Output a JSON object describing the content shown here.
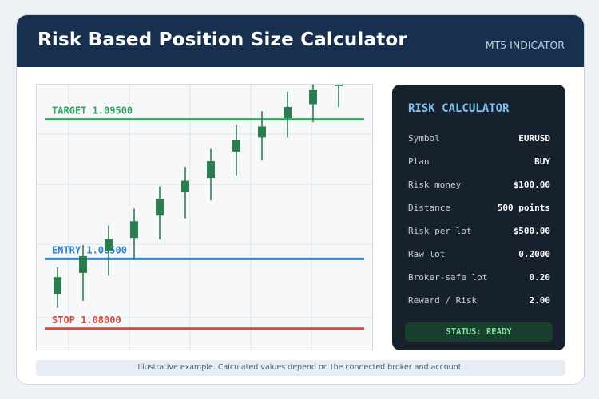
{
  "header": {
    "title": "Risk Based Position Size Calculator",
    "subtitle": "MT5 INDICATOR"
  },
  "chart_data": {
    "type": "candlestick",
    "ylim": [
      1.0785,
      1.0975
    ],
    "grid": true,
    "levels": [
      {
        "name": "target",
        "label": "TARGET 1.09500",
        "price": 1.095,
        "color": "#2fa561"
      },
      {
        "name": "entry",
        "label": "ENTRY 1.08500",
        "price": 1.085,
        "color": "#2b83d1"
      },
      {
        "name": "stop",
        "label": "STOP 1.08000",
        "price": 1.08,
        "color": "#d9493a"
      }
    ],
    "candle_color": "#2a7d4f",
    "candles": [
      {
        "open": 1.0825,
        "close": 1.0837,
        "high": 1.0844,
        "low": 1.0815
      },
      {
        "open": 1.084,
        "close": 1.0852,
        "high": 1.086,
        "low": 1.082
      },
      {
        "open": 1.0856,
        "close": 1.0864,
        "high": 1.0874,
        "low": 1.0838
      },
      {
        "open": 1.0865,
        "close": 1.0877,
        "high": 1.0886,
        "low": 1.085
      },
      {
        "open": 1.0881,
        "close": 1.0893,
        "high": 1.0902,
        "low": 1.0864
      },
      {
        "open": 1.0898,
        "close": 1.0906,
        "high": 1.0916,
        "low": 1.0879
      },
      {
        "open": 1.0908,
        "close": 1.092,
        "high": 1.0929,
        "low": 1.0892
      },
      {
        "open": 1.0927,
        "close": 1.0935,
        "high": 1.0946,
        "low": 1.091
      },
      {
        "open": 1.0937,
        "close": 1.0945,
        "high": 1.0956,
        "low": 1.0921
      },
      {
        "open": 1.0951,
        "close": 1.0959,
        "high": 1.097,
        "low": 1.0937
      },
      {
        "open": 1.0961,
        "close": 1.0971,
        "high": 1.0981,
        "low": 1.0948
      },
      {
        "open": 1.0974,
        "close": 1.0983,
        "high": 1.0993,
        "low": 1.0959
      }
    ]
  },
  "panel": {
    "title": "RISK CALCULATOR",
    "rows": [
      {
        "key": "Symbol",
        "value": "EURUSD"
      },
      {
        "key": "Plan",
        "value": "BUY"
      },
      {
        "key": "Risk money",
        "value": "$100.00"
      },
      {
        "key": "Distance",
        "value": "500 points"
      },
      {
        "key": "Risk per lot",
        "value": "$500.00"
      },
      {
        "key": "Raw lot",
        "value": "0.2000"
      },
      {
        "key": "Broker-safe lot",
        "value": "0.20"
      },
      {
        "key": "Reward / Risk",
        "value": "2.00"
      }
    ],
    "status": "STATUS: READY"
  },
  "footer": {
    "note": "Illustrative example. Calculated values depend on the connected broker and account."
  }
}
